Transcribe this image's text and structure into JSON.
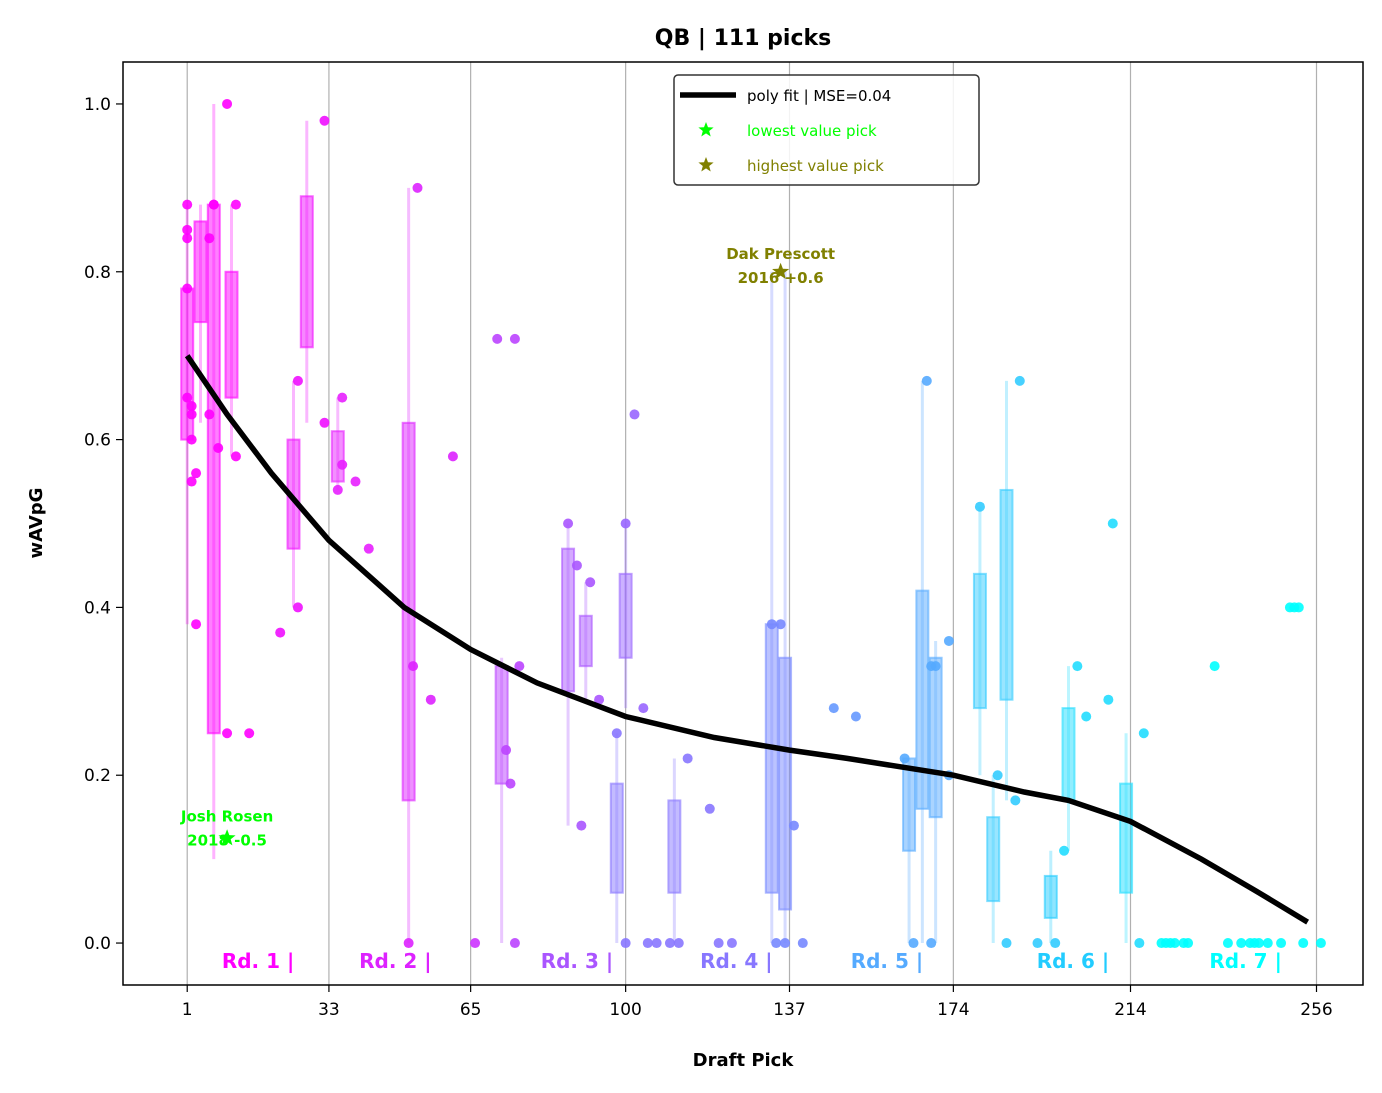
{
  "chart_data": {
    "type": "scatter",
    "title": "QB | 111 picks",
    "xlabel": "Draft Pick",
    "ylabel": "wAVpG",
    "xlim": [
      -13.5,
      266.5
    ],
    "ylim": [
      -0.05,
      1.05
    ],
    "xticks": [
      1,
      33,
      65,
      100,
      137,
      174,
      214,
      256
    ],
    "xtick_labels": [
      "1",
      "33",
      "65",
      "100",
      "137",
      "174",
      "214",
      "256"
    ],
    "yticks": [
      0.0,
      0.2,
      0.4,
      0.6,
      0.8,
      1.0
    ],
    "ytick_labels": [
      "0.0",
      "0.2",
      "0.4",
      "0.6",
      "0.8",
      "1.0"
    ],
    "grid": "vertical lines at round boundaries",
    "legend": {
      "placement": "top-center",
      "entries": [
        {
          "label": "poly fit | MSE=0.04",
          "color": "#000000",
          "marker": "line"
        },
        {
          "label": "lowest value pick",
          "color": "#00ff00",
          "marker": "star"
        },
        {
          "label": "highest value pick",
          "color": "#808000",
          "marker": "star"
        }
      ]
    },
    "round_labels": [
      {
        "label": "Rd. 1 |",
        "x": 17,
        "color": "#ff00ff"
      },
      {
        "label": "Rd. 2 |",
        "x": 48,
        "color": "#dd22ff"
      },
      {
        "label": "Rd. 3 |",
        "x": 89,
        "color": "#aa55ff"
      },
      {
        "label": "Rd. 4 |",
        "x": 125,
        "color": "#8877ff"
      },
      {
        "label": "Rd. 5 |",
        "x": 159,
        "color": "#55aaff"
      },
      {
        "label": "Rd. 6 |",
        "x": 201,
        "color": "#22ccff"
      },
      {
        "label": "Rd. 7 |",
        "x": 240,
        "color": "#00ffff"
      }
    ],
    "poly_fit": {
      "color": "#000000",
      "x": [
        1,
        10,
        20,
        33,
        50,
        65,
        80,
        100,
        120,
        137,
        150,
        174,
        190,
        200,
        214,
        230,
        243,
        254
      ],
      "y": [
        0.7,
        0.63,
        0.56,
        0.48,
        0.4,
        0.35,
        0.31,
        0.27,
        0.245,
        0.23,
        0.22,
        0.2,
        0.18,
        0.17,
        0.145,
        0.1,
        0.06,
        0.025
      ]
    },
    "boxes": [
      {
        "x": 1,
        "q1": 0.6,
        "q3": 0.78,
        "wlo": 0.38,
        "whi": 0.88,
        "color": "#ff00ff"
      },
      {
        "x": 4,
        "q1": 0.74,
        "q3": 0.86,
        "wlo": 0.62,
        "whi": 0.88,
        "color": "#ff00ff"
      },
      {
        "x": 7,
        "q1": 0.25,
        "q3": 0.88,
        "wlo": 0.1,
        "whi": 1.0,
        "color": "#ff00ff"
      },
      {
        "x": 11,
        "q1": 0.65,
        "q3": 0.8,
        "wlo": 0.58,
        "whi": 0.88,
        "color": "#ff00ff"
      },
      {
        "x": 25,
        "q1": 0.47,
        "q3": 0.6,
        "wlo": 0.4,
        "whi": 0.67,
        "color": "#f010ff"
      },
      {
        "x": 28,
        "q1": 0.71,
        "q3": 0.89,
        "wlo": 0.62,
        "whi": 0.98,
        "color": "#f010ff"
      },
      {
        "x": 35,
        "q1": 0.55,
        "q3": 0.61,
        "wlo": 0.54,
        "whi": 0.65,
        "color": "#e820ff"
      },
      {
        "x": 51,
        "q1": 0.17,
        "q3": 0.62,
        "wlo": 0.0,
        "whi": 0.9,
        "color": "#dd22ff"
      },
      {
        "x": 72,
        "q1": 0.19,
        "q3": 0.33,
        "wlo": 0.0,
        "whi": 0.34,
        "color": "#bb44ff"
      },
      {
        "x": 87,
        "q1": 0.3,
        "q3": 0.47,
        "wlo": 0.14,
        "whi": 0.5,
        "color": "#aa55ff"
      },
      {
        "x": 91,
        "q1": 0.33,
        "q3": 0.39,
        "wlo": 0.29,
        "whi": 0.43,
        "color": "#aa55ff"
      },
      {
        "x": 100,
        "q1": 0.34,
        "q3": 0.44,
        "wlo": 0.28,
        "whi": 0.5,
        "color": "#9966ff"
      },
      {
        "x": 98,
        "q1": 0.06,
        "q3": 0.19,
        "wlo": 0.0,
        "whi": 0.25,
        "color": "#8877ff"
      },
      {
        "x": 111,
        "q1": 0.06,
        "q3": 0.17,
        "wlo": 0.0,
        "whi": 0.22,
        "color": "#8877ff"
      },
      {
        "x": 133,
        "q1": 0.06,
        "q3": 0.38,
        "wlo": 0.0,
        "whi": 0.8,
        "color": "#7788ff"
      },
      {
        "x": 136,
        "q1": 0.04,
        "q3": 0.34,
        "wlo": 0.0,
        "whi": 0.8,
        "color": "#7788ff"
      },
      {
        "x": 164,
        "q1": 0.11,
        "q3": 0.22,
        "wlo": 0.0,
        "whi": 0.22,
        "color": "#55aaff"
      },
      {
        "x": 167,
        "q1": 0.16,
        "q3": 0.42,
        "wlo": 0.0,
        "whi": 0.67,
        "color": "#55aaff"
      },
      {
        "x": 170,
        "q1": 0.15,
        "q3": 0.34,
        "wlo": 0.0,
        "whi": 0.36,
        "color": "#55aaff"
      },
      {
        "x": 180,
        "q1": 0.28,
        "q3": 0.44,
        "wlo": 0.2,
        "whi": 0.52,
        "color": "#33ccff"
      },
      {
        "x": 183,
        "q1": 0.05,
        "q3": 0.15,
        "wlo": 0.0,
        "whi": 0.2,
        "color": "#33ccff"
      },
      {
        "x": 186,
        "q1": 0.29,
        "q3": 0.54,
        "wlo": 0.17,
        "whi": 0.67,
        "color": "#33ccff"
      },
      {
        "x": 196,
        "q1": 0.03,
        "q3": 0.08,
        "wlo": 0.0,
        "whi": 0.11,
        "color": "#22ccff"
      },
      {
        "x": 200,
        "q1": 0.17,
        "q3": 0.28,
        "wlo": 0.11,
        "whi": 0.33,
        "color": "#22ddff"
      },
      {
        "x": 213,
        "q1": 0.06,
        "q3": 0.19,
        "wlo": 0.0,
        "whi": 0.25,
        "color": "#22ddff"
      }
    ],
    "points": [
      [
        1,
        0.88,
        "#ff00ff"
      ],
      [
        1,
        0.85,
        "#ff00ff"
      ],
      [
        1,
        0.84,
        "#ff00ff"
      ],
      [
        1,
        0.78,
        "#ff00ff"
      ],
      [
        1,
        0.65,
        "#ff00ff"
      ],
      [
        2,
        0.64,
        "#ff00ff"
      ],
      [
        2,
        0.63,
        "#ff00ff"
      ],
      [
        2,
        0.6,
        "#ff00ff"
      ],
      [
        2,
        0.55,
        "#ff00ff"
      ],
      [
        3,
        0.56,
        "#ff00ff"
      ],
      [
        3,
        0.38,
        "#ff00ff"
      ],
      [
        6,
        0.84,
        "#ff00ff"
      ],
      [
        7,
        0.88,
        "#ff00ff"
      ],
      [
        7,
        0.88,
        "#ff00ff"
      ],
      [
        6,
        0.63,
        "#ff00ff"
      ],
      [
        8,
        0.59,
        "#ff00ff"
      ],
      [
        10,
        1.0,
        "#ff00ff"
      ],
      [
        12,
        0.88,
        "#ff00ff"
      ],
      [
        12,
        0.58,
        "#ff00ff"
      ],
      [
        10,
        0.25,
        "#ff00ff"
      ],
      [
        15,
        0.25,
        "#ff00ff"
      ],
      [
        22,
        0.37,
        "#f010ff"
      ],
      [
        26,
        0.67,
        "#f010ff"
      ],
      [
        26,
        0.4,
        "#f010ff"
      ],
      [
        32,
        0.98,
        "#f010ff"
      ],
      [
        32,
        0.62,
        "#f010ff"
      ],
      [
        36,
        0.65,
        "#e820ff"
      ],
      [
        36,
        0.57,
        "#e820ff"
      ],
      [
        35,
        0.54,
        "#e820ff"
      ],
      [
        39,
        0.55,
        "#e820ff"
      ],
      [
        42,
        0.47,
        "#e820ff"
      ],
      [
        53,
        0.9,
        "#dd22ff"
      ],
      [
        52,
        0.33,
        "#dd22ff"
      ],
      [
        51,
        0.0,
        "#dd22ff"
      ],
      [
        56,
        0.29,
        "#dd22ff"
      ],
      [
        61,
        0.58,
        "#dd22ff"
      ],
      [
        66,
        0.0,
        "#cc33ff"
      ],
      [
        71,
        0.72,
        "#bb44ff"
      ],
      [
        75,
        0.72,
        "#bb44ff"
      ],
      [
        73,
        0.23,
        "#bb44ff"
      ],
      [
        74,
        0.19,
        "#bb44ff"
      ],
      [
        76,
        0.33,
        "#bb44ff"
      ],
      [
        75,
        0.0,
        "#bb44ff"
      ],
      [
        87,
        0.5,
        "#aa55ff"
      ],
      [
        89,
        0.45,
        "#aa55ff"
      ],
      [
        92,
        0.43,
        "#aa55ff"
      ],
      [
        94,
        0.29,
        "#aa55ff"
      ],
      [
        90,
        0.14,
        "#aa55ff"
      ],
      [
        100,
        0.5,
        "#9966ff"
      ],
      [
        102,
        0.63,
        "#9966ff"
      ],
      [
        104,
        0.28,
        "#9966ff"
      ],
      [
        98,
        0.25,
        "#8877ff"
      ],
      [
        100,
        0.0,
        "#8877ff"
      ],
      [
        105,
        0.0,
        "#8877ff"
      ],
      [
        107,
        0.0,
        "#8877ff"
      ],
      [
        110,
        0.0,
        "#8877ff"
      ],
      [
        112,
        0.0,
        "#8877ff"
      ],
      [
        114,
        0.22,
        "#8877ff"
      ],
      [
        119,
        0.16,
        "#8877ff"
      ],
      [
        121,
        0.0,
        "#8877ff"
      ],
      [
        124,
        0.0,
        "#8877ff"
      ],
      [
        133,
        0.38,
        "#7788ff"
      ],
      [
        135,
        0.38,
        "#7788ff"
      ],
      [
        134,
        0.0,
        "#7788ff"
      ],
      [
        136,
        0.0,
        "#7788ff"
      ],
      [
        138,
        0.14,
        "#7788ff"
      ],
      [
        140,
        0.0,
        "#7788ff"
      ],
      [
        147,
        0.28,
        "#6699ff"
      ],
      [
        152,
        0.27,
        "#6699ff"
      ],
      [
        163,
        0.22,
        "#55aaff"
      ],
      [
        165,
        0.0,
        "#55aaff"
      ],
      [
        168,
        0.67,
        "#55aaff"
      ],
      [
        169,
        0.33,
        "#55aaff"
      ],
      [
        170,
        0.33,
        "#55aaff"
      ],
      [
        169,
        0.0,
        "#55aaff"
      ],
      [
        173,
        0.36,
        "#55aaff"
      ],
      [
        173,
        0.2,
        "#55aaff"
      ],
      [
        180,
        0.52,
        "#33ccff"
      ],
      [
        184,
        0.2,
        "#33ccff"
      ],
      [
        186,
        0.0,
        "#33ccff"
      ],
      [
        188,
        0.17,
        "#33ccff"
      ],
      [
        189,
        0.67,
        "#33ccff"
      ],
      [
        193,
        0.0,
        "#33ccff"
      ],
      [
        197,
        0.0,
        "#33ccff"
      ],
      [
        199,
        0.11,
        "#22ddff"
      ],
      [
        202,
        0.33,
        "#22ddff"
      ],
      [
        204,
        0.27,
        "#22ddff"
      ],
      [
        209,
        0.29,
        "#22ddff"
      ],
      [
        210,
        0.5,
        "#22ddff"
      ],
      [
        216,
        0.0,
        "#22ddff"
      ],
      [
        217,
        0.25,
        "#22ddff"
      ],
      [
        221,
        0.0,
        "#00ffff"
      ],
      [
        222,
        0.0,
        "#00ffff"
      ],
      [
        223,
        0.0,
        "#00ffff"
      ],
      [
        224,
        0.0,
        "#00ffff"
      ],
      [
        226,
        0.0,
        "#00ffff"
      ],
      [
        227,
        0.0,
        "#00ffff"
      ],
      [
        233,
        0.33,
        "#00ffff"
      ],
      [
        236,
        0.0,
        "#00ffff"
      ],
      [
        239,
        0.0,
        "#00ffff"
      ],
      [
        241,
        0.0,
        "#00ffff"
      ],
      [
        242,
        0.0,
        "#00ffff"
      ],
      [
        243,
        0.0,
        "#00ffff"
      ],
      [
        245,
        0.0,
        "#00ffff"
      ],
      [
        250,
        0.4,
        "#00ffff"
      ],
      [
        251,
        0.4,
        "#00ffff"
      ],
      [
        252,
        0.4,
        "#00ffff"
      ],
      [
        248,
        0.0,
        "#00ffff"
      ],
      [
        253,
        0.0,
        "#00ffff"
      ],
      [
        257,
        0.0,
        "#00ffff"
      ]
    ],
    "annotations": [
      {
        "name": "Josh Rosen",
        "line1": "Josh Rosen",
        "line2": "2018 -0.5",
        "x": 10,
        "y": 0.125,
        "text_y": 0.145,
        "color": "#00ff00"
      },
      {
        "name": "Dak Prescott",
        "line1": "Dak Prescott",
        "line2": "2016 +0.6",
        "x": 135,
        "y": 0.8,
        "text_y": 0.815,
        "color": "#808000"
      }
    ]
  }
}
